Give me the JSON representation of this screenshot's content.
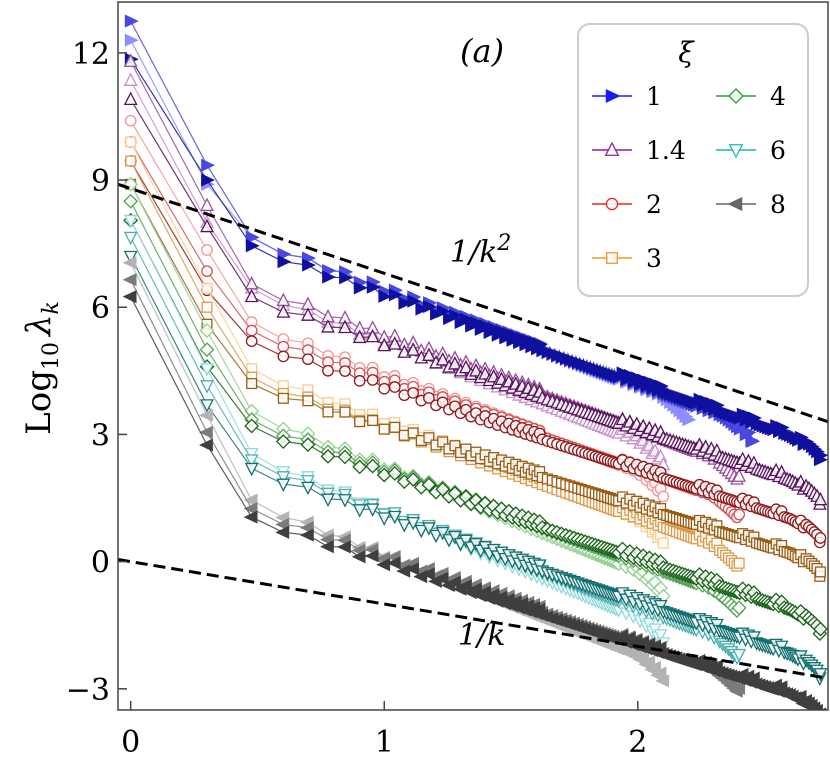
{
  "chart_data": {
    "type": "scatter",
    "panel_label": "(a)",
    "ylabel_main": "Log",
    "ylabel_sub": "10",
    "ylabel_var": "λ",
    "ylabel_var_sub": "k",
    "xlim": [
      -0.05,
      2.75
    ],
    "ylim": [
      -3.5,
      13.2
    ],
    "xticks": [
      0,
      1,
      2
    ],
    "xtick_labels": [
      "0",
      "1",
      "2"
    ],
    "yticks": [
      -3,
      0,
      3,
      6,
      9,
      12
    ],
    "ytick_labels": [
      "−3",
      "0",
      "3",
      "6",
      "9",
      "12"
    ],
    "grid": false,
    "legend": {
      "title": "ξ",
      "placement": "top-right",
      "entries": [
        {
          "label": "1",
          "marker": "triangle-right-filled",
          "color": "#1a1aff"
        },
        {
          "label": "1.4",
          "marker": "triangle-up-open",
          "color": "#8c1f94"
        },
        {
          "label": "2",
          "marker": "circle-open",
          "color": "#e8262a"
        },
        {
          "label": "3",
          "marker": "square-open",
          "color": "#f5961e"
        },
        {
          "label": "4",
          "marker": "diamond-open",
          "color": "#28a028"
        },
        {
          "label": "6",
          "marker": "triangle-down-open",
          "color": "#1eb4b4"
        },
        {
          "label": "8",
          "marker": "triangle-left-filled",
          "color": "#666666"
        }
      ]
    },
    "reference_lines": [
      {
        "label": "1/k",
        "label_sup": "2",
        "intercept": 8.8,
        "slope": -2.0
      },
      {
        "label": "1/k",
        "label_sup": "",
        "intercept": 0.0,
        "slope": -1.0
      }
    ],
    "series": [
      {
        "name": "1",
        "marker": "triangle-right-filled",
        "color": "#1a1aff",
        "curves": [
          {
            "y0": 12.3,
            "y1": 8.9,
            "p2": 7.65,
            "dv": 3.8,
            "end": 2.2
          },
          {
            "y0": 12.75,
            "y1": 9.35,
            "p2": 7.65,
            "dv": 3.3,
            "end": 2.45
          },
          {
            "y0": 11.85,
            "y1": 9.0,
            "p2": 7.45,
            "dv": 2.85,
            "end": 2.72
          }
        ]
      },
      {
        "name": "1.4",
        "marker": "triangle-up-open",
        "color": "#8c1f94",
        "curves": [
          {
            "y0": 11.35,
            "y1": 8.0,
            "p2": 6.45,
            "dv": 2.75,
            "end": 2.1
          },
          {
            "y0": 11.8,
            "y1": 8.4,
            "p2": 6.55,
            "dv": 2.35,
            "end": 2.4
          },
          {
            "y0": 10.9,
            "y1": 7.9,
            "p2": 6.25,
            "dv": 1.8,
            "end": 2.72
          }
        ]
      },
      {
        "name": "2",
        "marker": "circle-open",
        "color": "#e8262a",
        "curves": [
          {
            "y0": 10.4,
            "y1": 7.35,
            "p2": 5.65,
            "dv": 2.0,
            "end": 2.1
          },
          {
            "y0": 9.9,
            "y1": 6.85,
            "p2": 5.45,
            "dv": 1.45,
            "end": 2.4
          },
          {
            "y0": 9.45,
            "y1": 6.4,
            "p2": 5.2,
            "dv": 0.9,
            "end": 2.72
          }
        ]
      },
      {
        "name": "3",
        "marker": "square-open",
        "color": "#f5961e",
        "curves": [
          {
            "y0": 9.9,
            "y1": 6.45,
            "p2": 4.55,
            "dv": 0.9,
            "end": 2.1
          },
          {
            "y0": 9.45,
            "y1": 6.0,
            "p2": 4.35,
            "dv": 0.3,
            "end": 2.4
          },
          {
            "y0": 8.9,
            "y1": 5.6,
            "p2": 4.2,
            "dv": 0.1,
            "end": 2.72
          }
        ]
      },
      {
        "name": "4",
        "marker": "diamond-open",
        "color": "#28a028",
        "curves": [
          {
            "y0": 8.9,
            "y1": 5.45,
            "p2": 3.55,
            "dv": -0.35,
            "end": 2.1
          },
          {
            "y0": 8.5,
            "y1": 5.0,
            "p2": 3.35,
            "dv": -0.75,
            "end": 2.4
          },
          {
            "y0": 8.05,
            "y1": 4.6,
            "p2": 3.2,
            "dv": -1.25,
            "end": 2.72
          }
        ]
      },
      {
        "name": "6",
        "marker": "triangle-down-open",
        "color": "#1eb4b4",
        "curves": [
          {
            "y0": 8.05,
            "y1": 4.55,
            "p2": 2.55,
            "dv": -1.45,
            "end": 2.1
          },
          {
            "y0": 7.65,
            "y1": 4.15,
            "p2": 2.4,
            "dv": -1.85,
            "end": 2.4
          },
          {
            "y0": 7.2,
            "y1": 3.7,
            "p2": 2.2,
            "dv": -2.3,
            "end": 2.72
          }
        ]
      },
      {
        "name": "8",
        "marker": "triangle-left-filled",
        "color": "#666666",
        "curves": [
          {
            "y0": 7.05,
            "y1": 3.45,
            "p2": 1.45,
            "dv": -2.35,
            "end": 2.1
          },
          {
            "y0": 6.65,
            "y1": 3.05,
            "p2": 1.25,
            "dv": -2.65,
            "end": 2.4
          },
          {
            "y0": 6.25,
            "y1": 2.75,
            "p2": 1.05,
            "dv": -3.25,
            "end": 2.72
          }
        ]
      }
    ]
  }
}
